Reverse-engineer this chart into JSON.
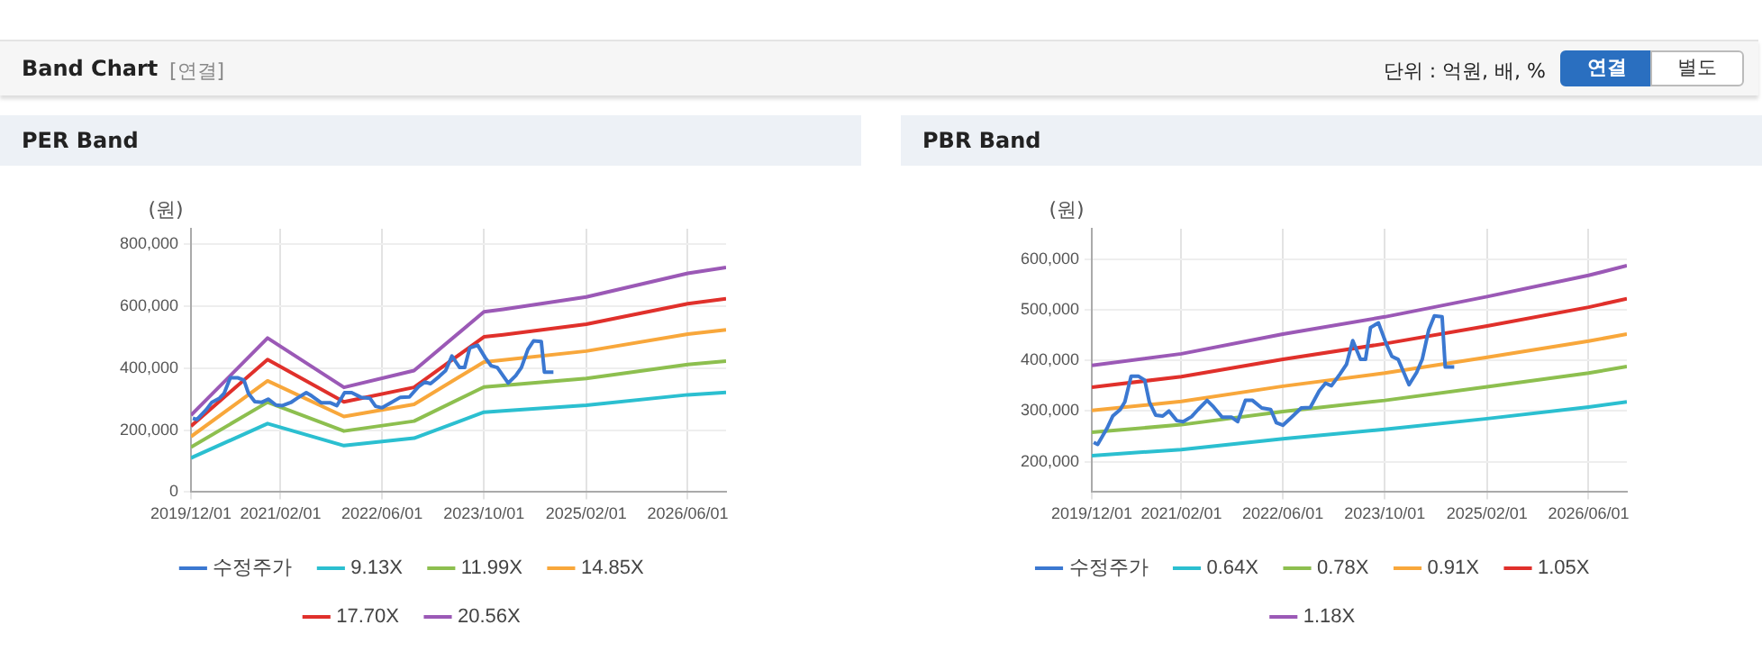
{
  "chart_data": [
    {
      "type": "line",
      "title": "PER Band",
      "ylabel": "(원)",
      "annotations": [
        "Band Chart",
        "[연결]",
        "단위 : 억원, 배, %",
        "연결",
        "별도"
      ],
      "x": [
        "2019-12-01",
        "2020-12-01",
        "2021-12-01",
        "2022-11-01",
        "2023-10-01",
        "2024-01-01",
        "2025-02-01",
        "2026-06-01",
        "2026-12-01"
      ],
      "series": [
        {
          "name": "수정주가",
          "color": "#3b78d1",
          "x": [
            "2019-12-10",
            "2019-12-29",
            "2020-02-12",
            "2020-03-10",
            "2020-04-15",
            "2020-05-07",
            "2020-06-06",
            "2020-07-10",
            "2020-08-10",
            "2020-09-01",
            "2020-10-01",
            "2020-11-04",
            "2020-12-04",
            "2021-01-10",
            "2021-02-10",
            "2021-03-22",
            "2021-04-22",
            "2021-06-04",
            "2021-07-01",
            "2021-08-15",
            "2021-09-28",
            "2021-10-28",
            "2021-12-04",
            "2022-01-07",
            "2022-02-20",
            "2022-04-04",
            "2022-05-01",
            "2022-06-01",
            "2022-07-13",
            "2022-08-28",
            "2022-10-10",
            "2022-11-22",
            "2022-12-22",
            "2023-01-19",
            "2023-03-01",
            "2023-04-01",
            "2023-05-01",
            "2023-06-07",
            "2023-07-01",
            "2023-07-25",
            "2023-09-01",
            "2023-10-07",
            "2023-11-04",
            "2023-12-04",
            "2024-01-25",
            "2024-03-01",
            "2024-03-28",
            "2024-04-28",
            "2024-05-25",
            "2024-07-01",
            "2024-07-16",
            "2024-08-01",
            "2024-08-28"
          ],
          "values": [
            238000,
            234000,
            266000,
            290000,
            303000,
            318000,
            369000,
            369000,
            361000,
            318000,
            292000,
            290000,
            300000,
            281000,
            279000,
            289000,
            303000,
            321000,
            310000,
            288000,
            288000,
            279000,
            321000,
            321000,
            306000,
            303000,
            277000,
            272000,
            288000,
            306000,
            307000,
            340000,
            355000,
            350000,
            373000,
            392000,
            439000,
            402000,
            402000,
            465000,
            474000,
            434000,
            408000,
            402000,
            352000,
            376000,
            402000,
            460000,
            488000,
            486000,
            387000,
            387000,
            387000
          ]
        },
        {
          "name": "9.13X",
          "color": "#2bbfd0",
          "values": [
            110000,
            221000,
            150000,
            174000,
            258000,
            262000,
            280000,
            314000,
            322000
          ]
        },
        {
          "name": "11.99X",
          "color": "#8dbf4f",
          "values": [
            145000,
            290000,
            197000,
            229000,
            339000,
            344000,
            367000,
            412000,
            423000
          ]
        },
        {
          "name": "14.85X",
          "color": "#f8a73b",
          "values": [
            179000,
            359000,
            244000,
            283000,
            420000,
            426000,
            455000,
            510000,
            524000
          ]
        },
        {
          "name": "17.70X",
          "color": "#e0302b",
          "values": [
            213000,
            428000,
            291000,
            338000,
            501000,
            508000,
            542000,
            608000,
            624000
          ]
        },
        {
          "name": "20.56X",
          "color": "#9b59b6",
          "values": [
            248000,
            497000,
            338000,
            392000,
            582000,
            590000,
            630000,
            706000,
            725000
          ]
        }
      ],
      "xlim": [
        "2019-12-01",
        "2026-12-01"
      ],
      "xticks": [
        {
          "value": "2019-12-01",
          "label": "2019/12/01"
        },
        {
          "value": "2021-02-01",
          "label": "2021/02/01"
        },
        {
          "value": "2022-06-01",
          "label": "2022/06/01"
        },
        {
          "value": "2023-10-01",
          "label": "2023/10/01"
        },
        {
          "value": "2025-02-01",
          "label": "2025/02/01"
        },
        {
          "value": "2026-06-01",
          "label": "2026/06/01"
        }
      ],
      "ylim": [
        0,
        850000
      ],
      "yticks": [
        0,
        {
          "value": 200000,
          "label": "200,000"
        },
        {
          "value": 400000,
          "label": "400,000"
        },
        {
          "value": 600000,
          "label": "600,000"
        },
        {
          "value": 800000,
          "label": "800,000"
        }
      ],
      "grid": true,
      "legend": "bottom",
      "marker": "none",
      "line_style": "solid"
    },
    {
      "type": "line",
      "title": "PBR Band",
      "ylabel": "(원)",
      "x": [
        "2019-12-01",
        "2021-02-01",
        "2022-06-01",
        "2023-10-01",
        "2025-02-01",
        "2026-06-01",
        "2026-12-01"
      ],
      "series": [
        {
          "name": "수정주가",
          "color": "#3b78d1",
          "x": [
            "2019-12-10",
            "2019-12-29",
            "2020-02-12",
            "2020-03-10",
            "2020-04-15",
            "2020-05-07",
            "2020-06-06",
            "2020-07-10",
            "2020-08-10",
            "2020-09-01",
            "2020-10-01",
            "2020-11-04",
            "2020-12-04",
            "2021-01-10",
            "2021-02-10",
            "2021-03-22",
            "2021-04-22",
            "2021-06-04",
            "2021-07-01",
            "2021-08-15",
            "2021-09-28",
            "2021-10-28",
            "2021-12-04",
            "2022-01-07",
            "2022-02-20",
            "2022-04-04",
            "2022-05-01",
            "2022-06-01",
            "2022-07-13",
            "2022-08-28",
            "2022-10-10",
            "2022-11-22",
            "2022-12-22",
            "2023-01-19",
            "2023-03-01",
            "2023-04-01",
            "2023-05-01",
            "2023-06-07",
            "2023-07-01",
            "2023-07-25",
            "2023-09-01",
            "2023-10-07",
            "2023-11-04",
            "2023-12-04",
            "2024-01-25",
            "2024-03-01",
            "2024-03-28",
            "2024-04-28",
            "2024-05-25",
            "2024-07-01",
            "2024-07-16",
            "2024-08-01",
            "2024-08-28"
          ],
          "values": [
            238000,
            234000,
            266000,
            290000,
            303000,
            318000,
            369000,
            369000,
            361000,
            318000,
            292000,
            290000,
            300000,
            281000,
            279000,
            289000,
            303000,
            321000,
            310000,
            288000,
            288000,
            279000,
            321000,
            321000,
            306000,
            303000,
            277000,
            272000,
            288000,
            306000,
            307000,
            340000,
            355000,
            350000,
            373000,
            392000,
            439000,
            402000,
            402000,
            465000,
            474000,
            434000,
            408000,
            402000,
            352000,
            376000,
            402000,
            460000,
            488000,
            486000,
            387000,
            387000,
            387000
          ]
        },
        {
          "name": "0.64X",
          "color": "#2bbfd0",
          "values": [
            212000,
            224000,
            245000,
            264000,
            285000,
            308000,
            318000
          ]
        },
        {
          "name": "0.78X",
          "color": "#8dbf4f",
          "values": [
            258000,
            273000,
            299000,
            321000,
            348000,
            375000,
            388000
          ]
        },
        {
          "name": "0.91X",
          "color": "#f8a73b",
          "values": [
            301000,
            319000,
            349000,
            375000,
            406000,
            438000,
            452000
          ]
        },
        {
          "name": "1.05X",
          "color": "#e0302b",
          "values": [
            347000,
            368000,
            402000,
            433000,
            468000,
            505000,
            522000
          ]
        },
        {
          "name": "1.18X",
          "color": "#9b59b6",
          "values": [
            390000,
            413000,
            452000,
            486000,
            526000,
            568000,
            587000
          ]
        }
      ],
      "xlim": [
        "2019-12-01",
        "2026-12-01"
      ],
      "xticks": [
        {
          "value": "2019-12-01",
          "label": "2019/12/01"
        },
        {
          "value": "2021-02-01",
          "label": "2021/02/01"
        },
        {
          "value": "2022-06-01",
          "label": "2022/06/01"
        },
        {
          "value": "2023-10-01",
          "label": "2023/10/01"
        },
        {
          "value": "2025-02-01",
          "label": "2025/02/01"
        },
        {
          "value": "2026-06-01",
          "label": "2026/06/01"
        }
      ],
      "ylim": [
        140000,
        660000
      ],
      "yticks": [
        {
          "value": 200000,
          "label": "200,000"
        },
        {
          "value": 300000,
          "label": "300,000"
        },
        {
          "value": 400000,
          "label": "400,000"
        },
        {
          "value": 500000,
          "label": "500,000"
        },
        {
          "value": 600000,
          "label": "600,000"
        }
      ],
      "grid": true,
      "legend": "bottom",
      "marker": "none",
      "line_style": "solid"
    }
  ]
}
